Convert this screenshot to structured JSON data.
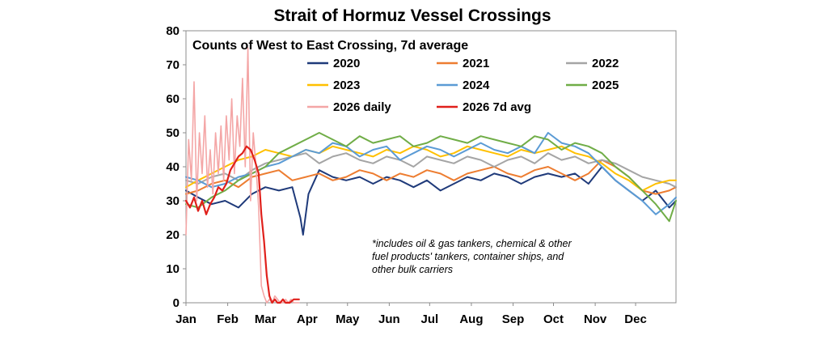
{
  "chart_data": {
    "type": "line",
    "title": "Strait of Hormuz Vessel Crossings",
    "subtitle": "Counts of West to East Crossing, 7d average",
    "xlabel": "",
    "ylabel": "",
    "ylim": [
      0,
      80
    ],
    "yticks": [
      0,
      10,
      20,
      30,
      40,
      50,
      60,
      70,
      80
    ],
    "xlim": [
      1,
      365
    ],
    "xticks": [
      {
        "label": "Jan",
        "day": 1
      },
      {
        "label": "Feb",
        "day": 32
      },
      {
        "label": "Mar",
        "day": 60
      },
      {
        "label": "Apr",
        "day": 91
      },
      {
        "label": "May",
        "day": 121
      },
      {
        "label": "Jun",
        "day": 152
      },
      {
        "label": "Jul",
        "day": 182
      },
      {
        "label": "Aug",
        "day": 213
      },
      {
        "label": "Sep",
        "day": 244
      },
      {
        "label": "Oct",
        "day": 274
      },
      {
        "label": "Nov",
        "day": 305
      },
      {
        "label": "Dec",
        "day": 335
      }
    ],
    "legend_placement": "top",
    "note": [
      "*includes oil & gas tankers, chemical & other",
      "fuel products' tankers, container ships, and",
      "other bulk carriers"
    ],
    "series": [
      {
        "name": "2020",
        "color": "#1f3a7a",
        "width": 2,
        "x": [
          1,
          10,
          20,
          30,
          40,
          50,
          60,
          70,
          80,
          86,
          88,
          92,
          100,
          110,
          120,
          130,
          140,
          150,
          160,
          170,
          180,
          190,
          200,
          210,
          220,
          230,
          240,
          250,
          260,
          270,
          280,
          290,
          300,
          310,
          320,
          330,
          340,
          350,
          360,
          365
        ],
        "y": [
          33,
          31,
          29,
          30,
          28,
          32,
          34,
          33,
          34,
          25,
          20,
          32,
          39,
          37,
          36,
          37,
          35,
          37,
          36,
          34,
          36,
          33,
          35,
          37,
          36,
          38,
          37,
          35,
          37,
          38,
          37,
          38,
          35,
          40,
          36,
          33,
          30,
          33,
          28,
          30
        ]
      },
      {
        "name": "2021",
        "color": "#ed7d31",
        "width": 2,
        "x": [
          1,
          10,
          20,
          30,
          40,
          50,
          60,
          70,
          80,
          90,
          100,
          110,
          120,
          130,
          140,
          150,
          160,
          170,
          180,
          190,
          200,
          210,
          220,
          230,
          240,
          250,
          260,
          270,
          280,
          290,
          300,
          310,
          320,
          330,
          340,
          350,
          360,
          365
        ],
        "y": [
          32,
          33,
          35,
          36,
          34,
          37,
          38,
          39,
          36,
          37,
          38,
          36,
          37,
          39,
          38,
          36,
          38,
          37,
          39,
          38,
          36,
          38,
          39,
          40,
          38,
          37,
          39,
          40,
          38,
          36,
          38,
          42,
          40,
          37,
          33,
          32,
          33,
          34
        ]
      },
      {
        "name": "2022",
        "color": "#a5a5a5",
        "width": 2,
        "x": [
          1,
          10,
          20,
          30,
          40,
          50,
          60,
          70,
          80,
          90,
          100,
          110,
          120,
          130,
          140,
          150,
          160,
          170,
          180,
          190,
          200,
          210,
          220,
          230,
          240,
          250,
          260,
          270,
          280,
          290,
          300,
          310,
          320,
          330,
          340,
          350,
          360,
          365
        ],
        "y": [
          36,
          35,
          37,
          38,
          36,
          39,
          41,
          42,
          43,
          44,
          41,
          43,
          44,
          42,
          41,
          43,
          42,
          40,
          43,
          42,
          41,
          43,
          42,
          40,
          42,
          43,
          41,
          44,
          42,
          43,
          41,
          42,
          41,
          39,
          37,
          36,
          35,
          34
        ]
      },
      {
        "name": "2023",
        "color": "#ffc000",
        "width": 2,
        "x": [
          1,
          10,
          20,
          30,
          40,
          50,
          60,
          70,
          80,
          90,
          100,
          110,
          120,
          130,
          140,
          150,
          160,
          170,
          180,
          190,
          200,
          210,
          220,
          230,
          240,
          250,
          260,
          270,
          280,
          290,
          300,
          310,
          320,
          330,
          340,
          350,
          360,
          365
        ],
        "y": [
          34,
          36,
          38,
          40,
          42,
          43,
          45,
          44,
          43,
          45,
          44,
          46,
          45,
          44,
          43,
          45,
          44,
          46,
          45,
          43,
          44,
          46,
          45,
          44,
          43,
          45,
          44,
          45,
          46,
          44,
          43,
          41,
          38,
          36,
          33,
          35,
          36,
          36
        ]
      },
      {
        "name": "2024",
        "color": "#5b9bd5",
        "width": 2,
        "x": [
          1,
          10,
          20,
          30,
          40,
          50,
          60,
          70,
          80,
          90,
          100,
          110,
          120,
          130,
          140,
          150,
          160,
          170,
          180,
          190,
          200,
          210,
          220,
          230,
          240,
          250,
          260,
          270,
          280,
          290,
          300,
          310,
          320,
          330,
          340,
          350,
          360,
          365
        ],
        "y": [
          37,
          36,
          34,
          35,
          37,
          38,
          40,
          41,
          43,
          45,
          44,
          47,
          46,
          43,
          45,
          46,
          42,
          44,
          46,
          45,
          43,
          45,
          47,
          45,
          44,
          46,
          44,
          50,
          47,
          46,
          44,
          40,
          36,
          33,
          30,
          26,
          29,
          31
        ]
      },
      {
        "name": "2025",
        "color": "#70ad47",
        "width": 2,
        "x": [
          1,
          10,
          20,
          30,
          40,
          50,
          60,
          70,
          80,
          90,
          100,
          110,
          120,
          130,
          140,
          150,
          160,
          170,
          180,
          190,
          200,
          210,
          220,
          230,
          240,
          250,
          260,
          270,
          280,
          290,
          300,
          310,
          320,
          330,
          340,
          350,
          360,
          365
        ],
        "y": [
          29,
          28,
          31,
          33,
          36,
          38,
          40,
          44,
          46,
          48,
          50,
          48,
          46,
          49,
          47,
          48,
          49,
          46,
          47,
          49,
          48,
          47,
          49,
          48,
          47,
          46,
          49,
          48,
          45,
          47,
          46,
          44,
          40,
          37,
          33,
          29,
          24,
          30
        ]
      },
      {
        "name": "2026 daily",
        "color": "#f4a6a6",
        "width": 1.6,
        "x": [
          1,
          3,
          5,
          7,
          9,
          11,
          13,
          15,
          17,
          19,
          21,
          23,
          25,
          27,
          29,
          31,
          33,
          35,
          37,
          39,
          41,
          43,
          45,
          47,
          49,
          51,
          53,
          55,
          57,
          59,
          61,
          63,
          65,
          67,
          69,
          71,
          73,
          75,
          77,
          79,
          81,
          83,
          85
        ],
        "y": [
          20,
          48,
          36,
          65,
          30,
          50,
          38,
          55,
          34,
          45,
          32,
          50,
          38,
          52,
          36,
          55,
          42,
          60,
          38,
          55,
          46,
          66,
          40,
          75,
          30,
          50,
          40,
          28,
          5,
          2,
          0,
          1,
          0,
          2,
          1,
          0,
          0,
          1,
          0,
          1,
          0,
          0,
          0
        ]
      },
      {
        "name": "2026 7d avg",
        "color": "#e0201b",
        "width": 2.2,
        "x": [
          1,
          4,
          7,
          10,
          13,
          16,
          19,
          22,
          25,
          28,
          31,
          34,
          37,
          40,
          43,
          46,
          49,
          52,
          55,
          57,
          59,
          61,
          63,
          65,
          67,
          69,
          71,
          73,
          75,
          78,
          81,
          85
        ],
        "y": [
          30,
          28,
          31,
          27,
          30,
          26,
          29,
          31,
          34,
          33,
          35,
          39,
          41,
          43,
          44,
          46,
          45,
          42,
          38,
          26,
          18,
          8,
          2,
          0,
          1,
          0,
          0,
          1,
          0,
          0,
          1,
          1
        ]
      }
    ]
  }
}
